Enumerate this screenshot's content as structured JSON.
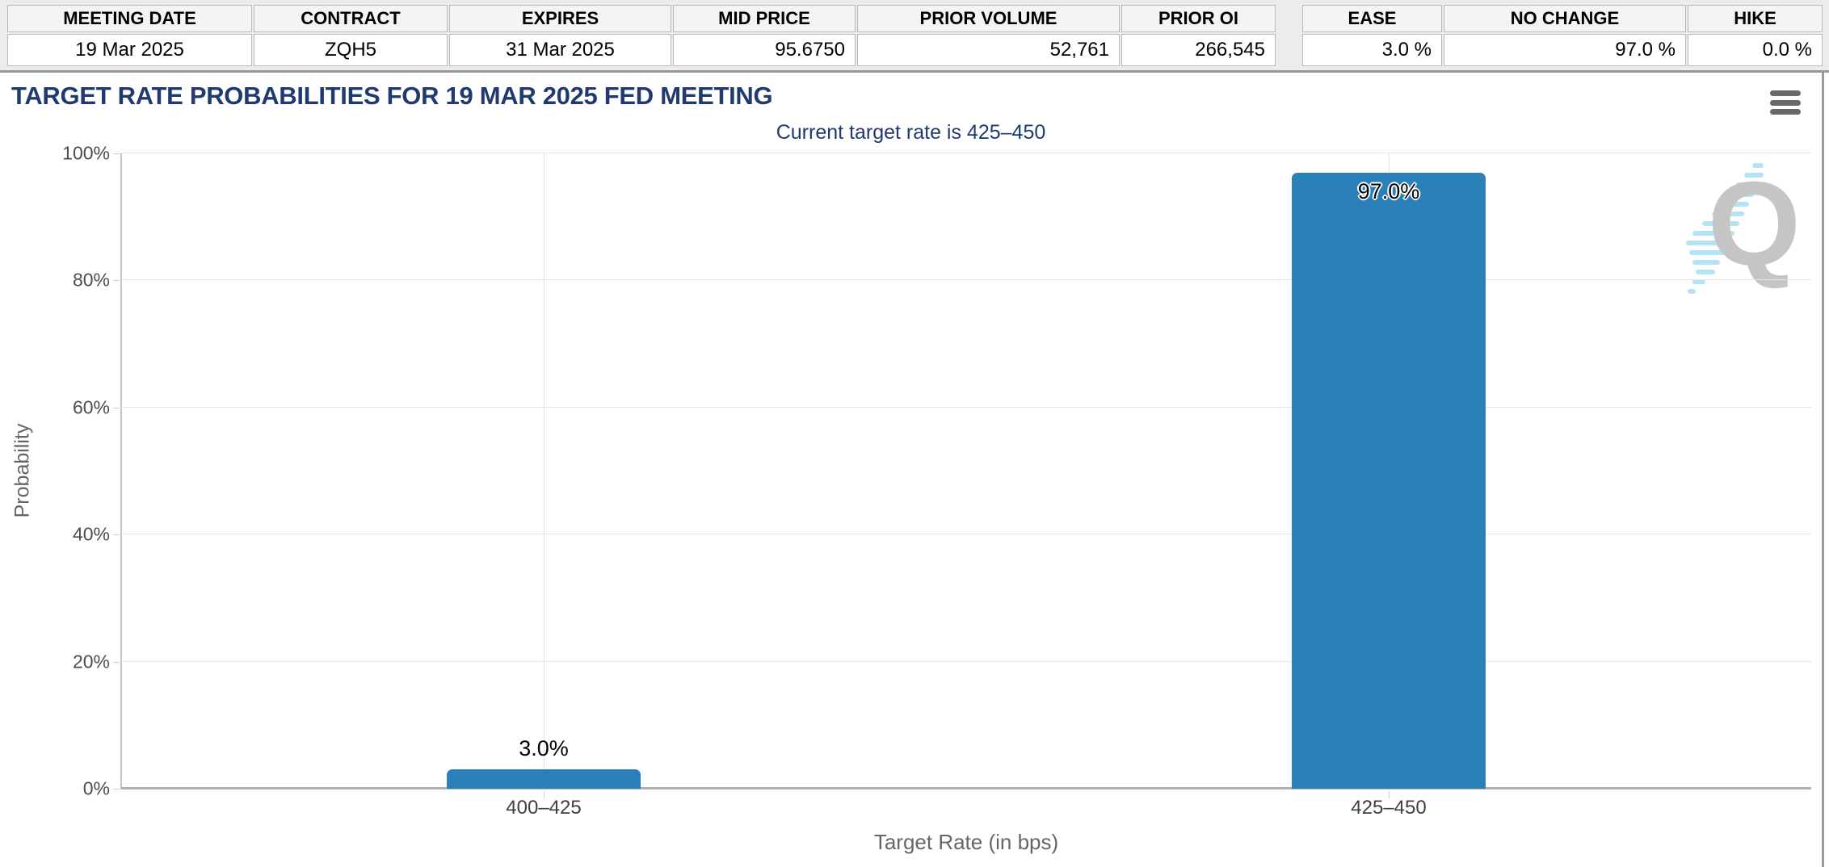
{
  "meeting_table": {
    "headers": [
      "MEETING DATE",
      "CONTRACT",
      "EXPIRES",
      "MID PRICE",
      "PRIOR VOLUME",
      "PRIOR OI"
    ],
    "values": [
      "19 Mar 2025",
      "ZQH5",
      "31 Mar 2025",
      "95.6750",
      "52,761",
      "266,545"
    ]
  },
  "action_table": {
    "headers": [
      "EASE",
      "NO CHANGE",
      "HIKE"
    ],
    "values": [
      "3.0 %",
      "97.0 %",
      "0.0 %"
    ]
  },
  "chart": {
    "title": "TARGET RATE PROBABILITIES FOR 19 MAR 2025 FED MEETING",
    "subtitle": "Current target rate is 425–450",
    "menu_icon": "hamburger-icon",
    "watermark_letter": "Q"
  },
  "chart_data": {
    "type": "bar",
    "title": "TARGET RATE PROBABILITIES FOR 19 MAR 2025 FED MEETING",
    "subtitle": "Current target rate is 425–450",
    "categories": [
      "400–425",
      "425–450"
    ],
    "values": [
      3.0,
      97.0
    ],
    "bar_labels": [
      "3.0%",
      "97.0%"
    ],
    "xlabel": "Target Rate (in bps)",
    "ylabel": "Probability",
    "ylim": [
      0,
      100
    ],
    "ytick_step": 20,
    "ytick_labels": [
      "0%",
      "20%",
      "40%",
      "60%",
      "80%",
      "100%"
    ],
    "grid": true,
    "legend": "none",
    "bar_color": "#2a80b9",
    "title_color": "#203a70"
  }
}
